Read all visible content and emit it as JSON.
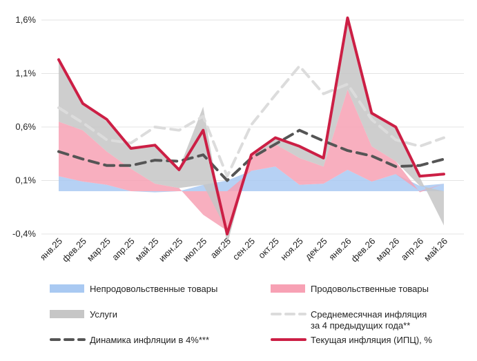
{
  "chart_data": {
    "type": "area",
    "ylim": [
      -0.4,
      1.6
    ],
    "yticks": [
      -0.4,
      0.1,
      0.6,
      1.1,
      1.6
    ],
    "ytick_labels": [
      "-0,4%",
      "0,1%",
      "0,6%",
      "1,1%",
      "1,6%"
    ],
    "categories": [
      "янв.25",
      "фев.25",
      "мар.25",
      "апр.25",
      "май.25",
      "июн.25",
      "июл.25",
      "авг.25",
      "сен.25",
      "окт.25",
      "ноя.25",
      "дек.25",
      "янв.26",
      "фев.26",
      "мар.26",
      "апр.26",
      "май.26"
    ],
    "grid": "horizontal",
    "legend_position": "bottom",
    "stacked_series": [
      {
        "name": "Непродовольственные товары",
        "color": "#a9c9f2",
        "values": [
          0.14,
          0.09,
          0.06,
          0.0,
          -0.01,
          0.0,
          0.06,
          0.1,
          0.19,
          0.23,
          0.06,
          0.07,
          0.2,
          0.09,
          0.16,
          0.05,
          0.07
        ]
      },
      {
        "name": "Продовольственные товары",
        "color": "#f7a1b4",
        "values": [
          0.51,
          0.48,
          0.31,
          0.21,
          0.07,
          0.03,
          -0.22,
          -0.37,
          0.15,
          0.21,
          0.25,
          0.16,
          0.75,
          0.33,
          0.12,
          -0.01,
          0.0
        ]
      },
      {
        "name": "Услуги",
        "color": "#c6c6c6",
        "values": [
          0.57,
          0.25,
          0.28,
          0.19,
          0.37,
          0.18,
          0.73,
          -0.13,
          0.0,
          0.06,
          0.1,
          0.07,
          0.65,
          0.31,
          0.32,
          0.08,
          -0.32
        ]
      }
    ],
    "line_series": [
      {
        "name": "Среднемесячная инфляция за 4 предыдущих года**",
        "color": "#dcdcdc",
        "style": "dashed",
        "values": [
          0.78,
          0.64,
          0.48,
          0.45,
          0.6,
          0.57,
          0.7,
          0.14,
          0.62,
          0.9,
          1.17,
          0.91,
          1.0,
          0.67,
          0.48,
          0.42,
          0.5
        ]
      },
      {
        "name": "Динамика инфляции в 4%***",
        "color": "#555555",
        "style": "dashed",
        "values": [
          0.37,
          0.3,
          0.24,
          0.24,
          0.29,
          0.28,
          0.34,
          0.1,
          0.31,
          0.44,
          0.57,
          0.47,
          0.38,
          0.33,
          0.23,
          0.24,
          0.3
        ]
      },
      {
        "name": "Текущая инфляция (ИПЦ), %",
        "color": "#cc1f45",
        "style": "solid",
        "values": [
          1.23,
          0.82,
          0.67,
          0.4,
          0.43,
          0.2,
          0.57,
          -0.4,
          0.34,
          0.5,
          0.42,
          0.31,
          1.62,
          0.73,
          0.6,
          0.14,
          0.16
        ]
      }
    ],
    "legend": [
      {
        "label": "Непродовольственные товары",
        "kind": "swatch",
        "color": "#a9c9f2"
      },
      {
        "label": "Продовольственные товары",
        "kind": "swatch",
        "color": "#f7a1b4"
      },
      {
        "label": "Услуги",
        "kind": "swatch",
        "color": "#c6c6c6"
      },
      {
        "label": "Среднемесячная инфляция",
        "label2": "за 4 предыдущих года**",
        "kind": "dash",
        "color": "#dcdcdc"
      },
      {
        "label": "Динамика инфляции в 4%***",
        "kind": "dash",
        "color": "#555555"
      },
      {
        "label": "Текущая инфляция (ИПЦ), %",
        "kind": "solid",
        "color": "#cc1f45"
      }
    ]
  }
}
